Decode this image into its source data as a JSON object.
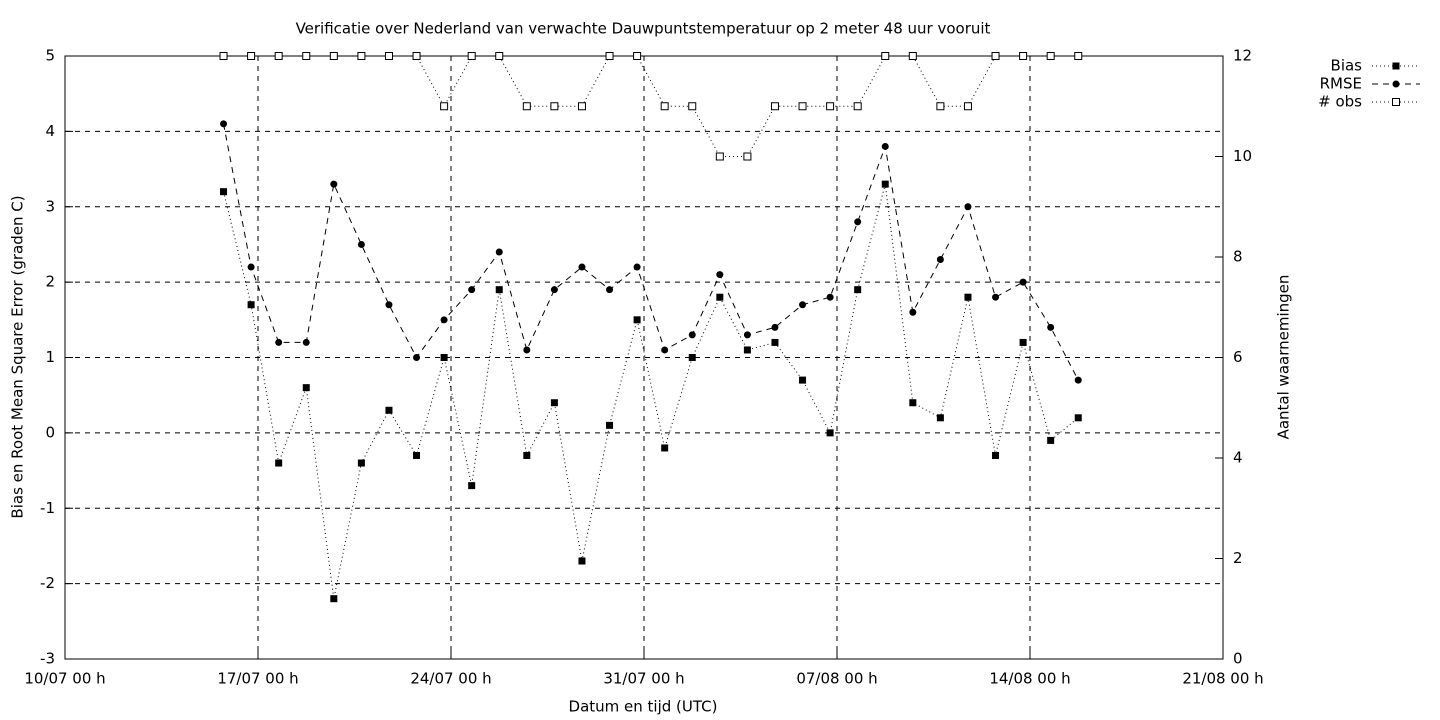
{
  "chart_data": {
    "type": "line",
    "title": "Verificatie over Nederland van verwachte Dauwpuntstemperatuur op 2 meter 48 uur vooruit",
    "xlabel": "Datum en tijd (UTC)",
    "ylabel": "Bias en Root Mean Square Error (graden C)",
    "y2label": "Aantal waarnemingen",
    "x": [
      5.75,
      6.75,
      7.75,
      8.75,
      9.75,
      10.75,
      11.75,
      12.75,
      13.75,
      14.75,
      15.75,
      16.75,
      17.75,
      18.75,
      19.75,
      20.75,
      21.75,
      22.75,
      23.75,
      24.75,
      25.75,
      26.75,
      27.75,
      28.75,
      29.75,
      30.75,
      31.75,
      32.75,
      33.75,
      34.75,
      35.75,
      36.75
    ],
    "xlim": [
      0,
      42
    ],
    "xticks": [
      {
        "value": 0,
        "label": "10/07 00 h"
      },
      {
        "value": 7,
        "label": "17/07 00 h"
      },
      {
        "value": 14,
        "label": "24/07 00 h"
      },
      {
        "value": 21,
        "label": "31/07 00 h"
      },
      {
        "value": 28,
        "label": "07/08 00 h"
      },
      {
        "value": 35,
        "label": "14/08 00 h"
      },
      {
        "value": 42,
        "label": "21/08 00 h"
      }
    ],
    "ylim": [
      -3,
      5
    ],
    "yticks": [
      -3,
      -2,
      -1,
      0,
      1,
      2,
      3,
      4,
      5
    ],
    "y2lim": [
      0,
      12
    ],
    "y2ticks": [
      0,
      2,
      4,
      6,
      8,
      10,
      12
    ],
    "grid": true,
    "legend": "top-right",
    "series": [
      {
        "name": "Bias",
        "color": "#000000",
        "dash": "dotted",
        "marker": "filled-square",
        "values": [
          3.2,
          1.7,
          -0.4,
          0.6,
          -2.2,
          -0.4,
          0.3,
          -0.3,
          1.0,
          -0.7,
          1.9,
          -0.3,
          0.4,
          -1.7,
          0.1,
          1.5,
          -0.2,
          1.0,
          1.8,
          1.1,
          1.2,
          0.7,
          0.0,
          1.9,
          3.3,
          0.4,
          0.2,
          1.8,
          -0.3,
          1.2,
          -0.1,
          0.2
        ]
      },
      {
        "name": "RMSE",
        "color": "#000000",
        "dash": "dashed",
        "marker": "filled-circle",
        "values": [
          4.1,
          2.2,
          1.2,
          1.2,
          3.3,
          2.5,
          1.7,
          1.0,
          1.5,
          1.9,
          2.4,
          1.1,
          1.9,
          2.2,
          1.9,
          2.2,
          1.1,
          1.3,
          2.1,
          1.3,
          1.4,
          1.7,
          1.8,
          2.8,
          3.8,
          1.6,
          2.3,
          3.0,
          1.8,
          2.0,
          1.4,
          0.7
        ]
      },
      {
        "name": "# obs",
        "color": "#000000",
        "dash": "dotted",
        "marker": "open-square",
        "axis": "y2",
        "values": [
          12,
          12,
          12,
          12,
          12,
          12,
          12,
          12,
          11,
          12,
          12,
          11,
          11,
          11,
          12,
          12,
          11,
          11,
          10,
          10,
          11,
          11,
          11,
          11,
          12,
          12,
          11,
          11,
          12,
          12,
          12,
          12
        ]
      }
    ]
  }
}
